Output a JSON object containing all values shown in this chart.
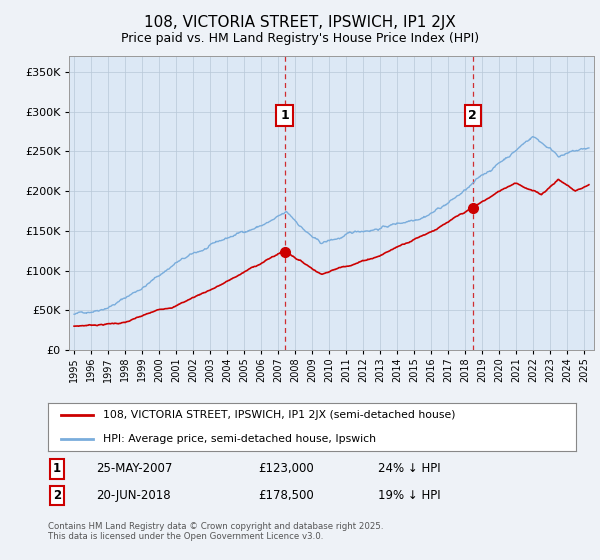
{
  "title": "108, VICTORIA STREET, IPSWICH, IP1 2JX",
  "subtitle": "Price paid vs. HM Land Registry's House Price Index (HPI)",
  "hpi_color": "#7aaddc",
  "price_color": "#cc0000",
  "background_color": "#eef2f7",
  "plot_bg_color": "#dce8f5",
  "legend_bg_color": "#ffffff",
  "legend_label_price": "108, VICTORIA STREET, IPSWICH, IP1 2JX (semi-detached house)",
  "legend_label_hpi": "HPI: Average price, semi-detached house, Ipswich",
  "annotation1_date": "25-MAY-2007",
  "annotation1_price": "£123,000",
  "annotation1_pct": "24% ↓ HPI",
  "annotation2_date": "20-JUN-2018",
  "annotation2_price": "£178,500",
  "annotation2_pct": "19% ↓ HPI",
  "footer": "Contains HM Land Registry data © Crown copyright and database right 2025.\nThis data is licensed under the Open Government Licence v3.0.",
  "ylim": [
    0,
    370000
  ],
  "yticks": [
    0,
    50000,
    100000,
    150000,
    200000,
    250000,
    300000,
    350000
  ],
  "sale1_year": 2007.39,
  "sale1_price": 123000,
  "sale2_year": 2018.47,
  "sale2_price": 178500
}
